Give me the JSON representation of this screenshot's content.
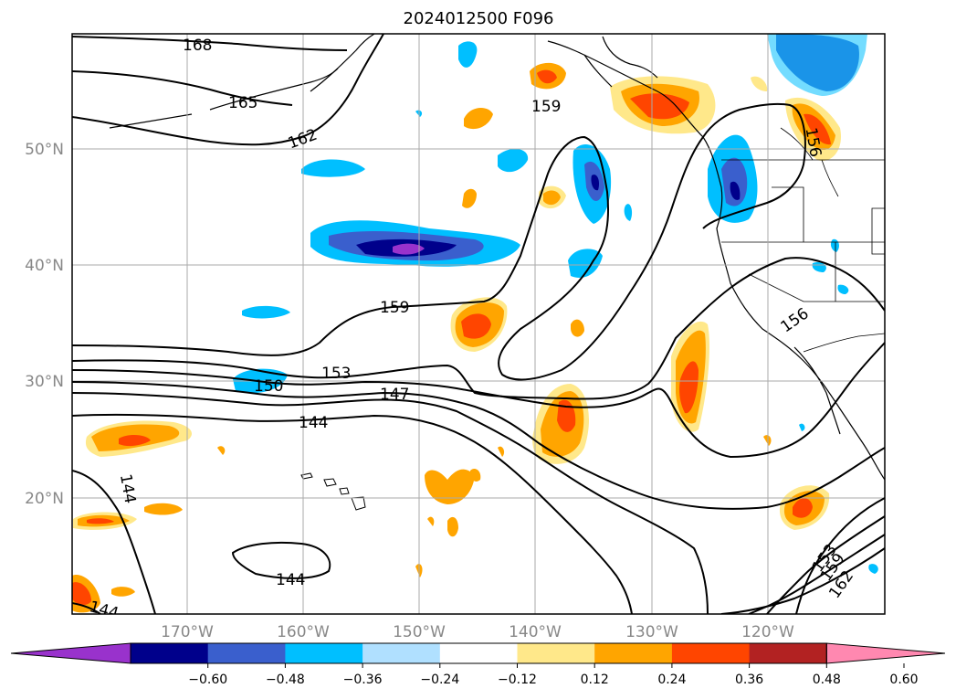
{
  "title": "2024012500 F096",
  "axes": {
    "lat_labels": [
      "50°N",
      "40°N",
      "30°N",
      "20°N"
    ],
    "lon_labels": [
      "170°W",
      "160°W",
      "150°W",
      "140°W",
      "130°W",
      "120°W"
    ],
    "extent": {
      "lon_min": -180,
      "lon_max": -110,
      "lat_min": 10,
      "lat_max": 60
    },
    "grid": true
  },
  "colorbar": {
    "colors": [
      "#9932cc",
      "#00008b",
      "#3a5fcd",
      "#00bfff",
      "#b0e0ff",
      "#ffffff",
      "#ffe88a",
      "#ffa500",
      "#ff4500",
      "#b22222",
      "#ff88b0"
    ],
    "tick_labels": [
      "−0.60",
      "−0.48",
      "−0.36",
      "−0.24",
      "−0.12",
      "0.12",
      "0.24",
      "0.36",
      "0.48",
      "0.60"
    ],
    "extend": "both"
  },
  "contour_labels": [
    "168",
    "165",
    "162",
    "159",
    "159",
    "156",
    "156",
    "150",
    "153",
    "147",
    "144",
    "144",
    "144",
    "144",
    "153",
    "159",
    "162"
  ]
}
